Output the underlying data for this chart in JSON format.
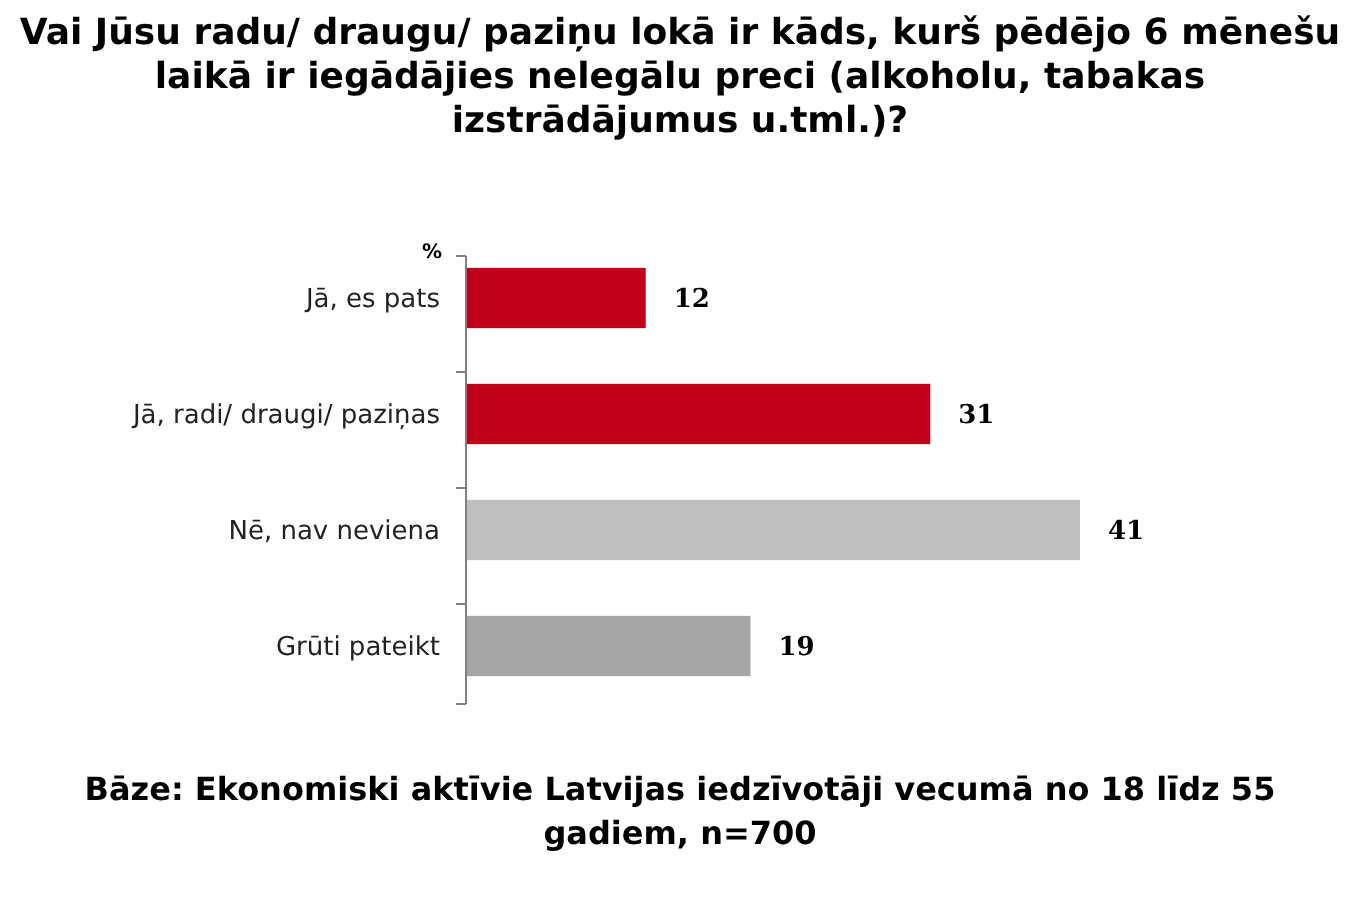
{
  "chart_data": {
    "type": "bar",
    "orientation": "horizontal",
    "title": "Vai Jūsu radu/ draugu/ paziņu lokā ir kāds, kurš pēdējo 6 mēnešu laikā ir iegādājies nelegālu preci (alkoholu, tabakas izstrādājumus u.tml.)?",
    "categories": [
      "Jā, es pats",
      "Jā, radi/ draugi/ paziņas",
      "Nē, nav neviena",
      "Grūti pateikt"
    ],
    "values": [
      12,
      31,
      41,
      19
    ],
    "colors": [
      "#c0001a",
      "#c0001a",
      "#bfbfbf",
      "#a6a6a6"
    ],
    "data_labels": true,
    "xlabel": "%",
    "annotations": [
      "Bāze: Ekonomiski aktīvie Latvijas iedzīvotāji vecumā no 18 līdz 55 gadiem, n=700"
    ]
  }
}
